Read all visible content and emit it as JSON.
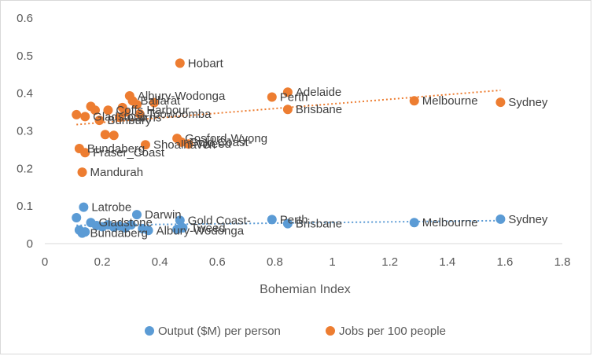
{
  "chart_data": {
    "type": "scatter",
    "title": "",
    "xlabel": "Bohemian Index",
    "ylabel": "",
    "xlim": [
      0,
      1.8
    ],
    "ylim": [
      0,
      0.6
    ],
    "x_ticks": [
      "0",
      "0.2",
      "0.4",
      "0.6",
      "0.8",
      "1",
      "1.2",
      "1.4",
      "1.6",
      "1.8"
    ],
    "y_ticks": [
      "0",
      "0.1",
      "0.2",
      "0.3",
      "0.4",
      "0.5",
      "0.6"
    ],
    "grid": false,
    "legend_position": "bottom",
    "series": [
      {
        "name": "Output ($M) per person",
        "color": "#5B9BD5",
        "trendline": "linear",
        "points": [
          {
            "x": 0.11,
            "y": 0.069,
            "label": ""
          },
          {
            "x": 0.12,
            "y": 0.036,
            "label": ""
          },
          {
            "x": 0.13,
            "y": 0.028,
            "label": "Bundaberg"
          },
          {
            "x": 0.14,
            "y": 0.031,
            "label": ""
          },
          {
            "x": 0.135,
            "y": 0.097,
            "label": "Latrobe"
          },
          {
            "x": 0.16,
            "y": 0.056,
            "label": "Gladstone"
          },
          {
            "x": 0.18,
            "y": 0.048,
            "label": ""
          },
          {
            "x": 0.2,
            "y": 0.045,
            "label": ""
          },
          {
            "x": 0.22,
            "y": 0.05,
            "label": ""
          },
          {
            "x": 0.24,
            "y": 0.044,
            "label": ""
          },
          {
            "x": 0.26,
            "y": 0.047,
            "label": ""
          },
          {
            "x": 0.28,
            "y": 0.042,
            "label": ""
          },
          {
            "x": 0.3,
            "y": 0.05,
            "label": ""
          },
          {
            "x": 0.32,
            "y": 0.077,
            "label": "Darwin"
          },
          {
            "x": 0.34,
            "y": 0.04,
            "label": ""
          },
          {
            "x": 0.36,
            "y": 0.035,
            "label": "Albury-Wodonga"
          },
          {
            "x": 0.46,
            "y": 0.038,
            "label": ""
          },
          {
            "x": 0.47,
            "y": 0.062,
            "label": "Gold Coast-"
          },
          {
            "x": 0.48,
            "y": 0.042,
            "label": "Tweed"
          },
          {
            "x": 0.79,
            "y": 0.064,
            "label": "Perth"
          },
          {
            "x": 0.845,
            "y": 0.053,
            "label": "Brisbane"
          },
          {
            "x": 1.285,
            "y": 0.056,
            "label": "Melbourne"
          },
          {
            "x": 1.585,
            "y": 0.065,
            "label": "Sydney"
          }
        ]
      },
      {
        "name": "Jobs per 100 people",
        "color": "#ED7D31",
        "trendline": "linear",
        "points": [
          {
            "x": 0.11,
            "y": 0.343,
            "label": ""
          },
          {
            "x": 0.12,
            "y": 0.253,
            "label": "Bundaberg"
          },
          {
            "x": 0.14,
            "y": 0.242,
            "label": "Fraser_Coast"
          },
          {
            "x": 0.13,
            "y": 0.19,
            "label": "Mandurah"
          },
          {
            "x": 0.14,
            "y": 0.338,
            "label": "Gladstone"
          },
          {
            "x": 0.16,
            "y": 0.365,
            "label": ""
          },
          {
            "x": 0.175,
            "y": 0.355,
            "label": ""
          },
          {
            "x": 0.19,
            "y": 0.328,
            "label": "Bunbury"
          },
          {
            "x": 0.21,
            "y": 0.29,
            "label": ""
          },
          {
            "x": 0.22,
            "y": 0.355,
            "label": "Coffs Harbour"
          },
          {
            "x": 0.24,
            "y": 0.288,
            "label": ""
          },
          {
            "x": 0.26,
            "y": 0.336,
            "label": "Cairns"
          },
          {
            "x": 0.27,
            "y": 0.362,
            "label": ""
          },
          {
            "x": 0.28,
            "y": 0.35,
            "label": ""
          },
          {
            "x": 0.295,
            "y": 0.393,
            "label": "Albury-Wodonga"
          },
          {
            "x": 0.305,
            "y": 0.38,
            "label": "Ballarat"
          },
          {
            "x": 0.32,
            "y": 0.37,
            "label": ""
          },
          {
            "x": 0.33,
            "y": 0.345,
            "label": "Toowoomba"
          },
          {
            "x": 0.35,
            "y": 0.263,
            "label": "Shoalhaven"
          },
          {
            "x": 0.38,
            "y": 0.375,
            "label": ""
          },
          {
            "x": 0.46,
            "y": 0.28,
            "label": "Gosford-Wyong"
          },
          {
            "x": 0.475,
            "y": 0.27,
            "label": "Gold Coast-"
          },
          {
            "x": 0.5,
            "y": 0.265,
            "label": "Tweed"
          },
          {
            "x": 0.47,
            "y": 0.48,
            "label": "Hobart"
          },
          {
            "x": 0.79,
            "y": 0.39,
            "label": "Perth"
          },
          {
            "x": 0.845,
            "y": 0.403,
            "label": "Adelaide"
          },
          {
            "x": 0.845,
            "y": 0.357,
            "label": "Brisbane"
          },
          {
            "x": 1.285,
            "y": 0.38,
            "label": "Melbourne"
          },
          {
            "x": 1.585,
            "y": 0.376,
            "label": "Sydney"
          }
        ]
      }
    ]
  }
}
